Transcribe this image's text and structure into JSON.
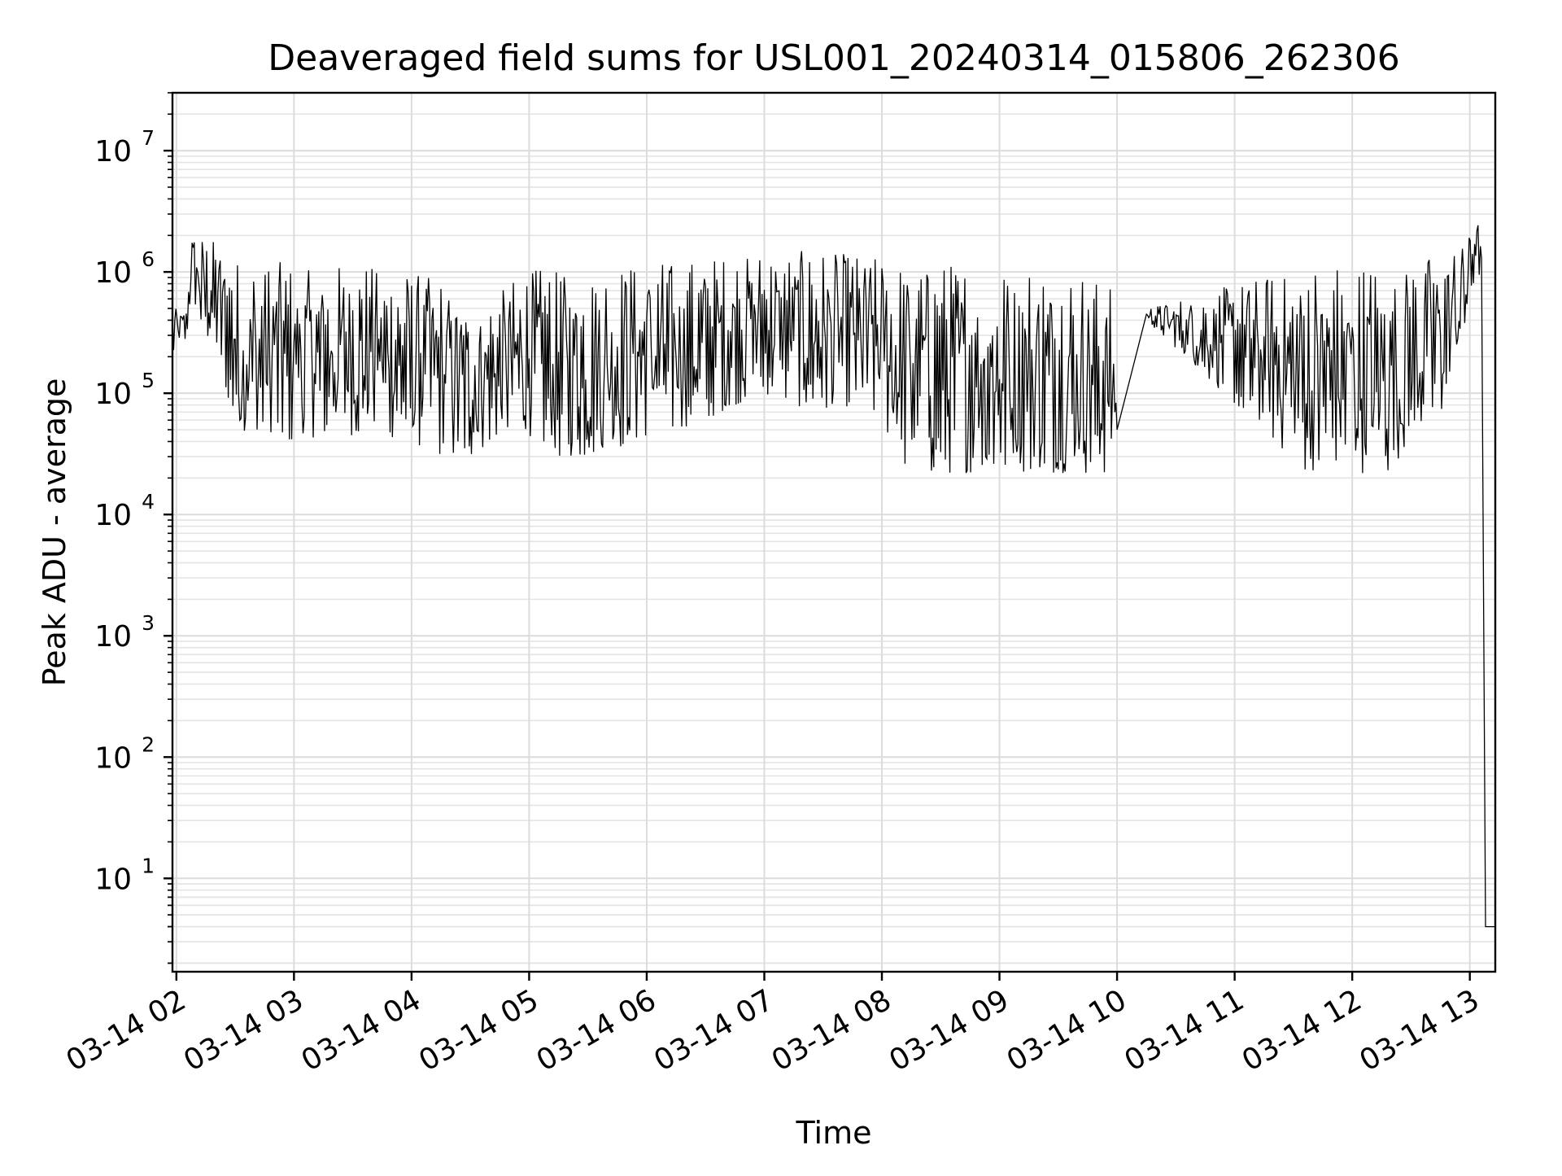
{
  "chart_data": {
    "type": "line",
    "title": "Deaveraged field sums for USL001_20240314_015806_262306",
    "xlabel": "Time",
    "ylabel": "Peak ADU - average",
    "yscale": "log",
    "ylim": [
      1.7,
      30000000
    ],
    "xlim": [
      "2024-03-14 01:58",
      "2024-03-14 13:13"
    ],
    "grid": "major and minor",
    "line_color": "#000000",
    "x_tick_labels": [
      "03-14 02",
      "03-14 03",
      "03-14 04",
      "03-14 05",
      "03-14 06",
      "03-14 07",
      "03-14 08",
      "03-14 09",
      "03-14 10",
      "03-14 11",
      "03-14 12",
      "03-14 13"
    ],
    "x_ticks": [
      "2024-03-14 02:00",
      "2024-03-14 03:00",
      "2024-03-14 04:00",
      "2024-03-14 05:00",
      "2024-03-14 06:00",
      "2024-03-14 07:00",
      "2024-03-14 08:00",
      "2024-03-14 09:00",
      "2024-03-14 10:00",
      "2024-03-14 11:00",
      "2024-03-14 12:00",
      "2024-03-14 13:00"
    ],
    "y_ticks": [
      {
        "value": 10,
        "base": "10",
        "exp": "1"
      },
      {
        "value": 100,
        "base": "10",
        "exp": "2"
      },
      {
        "value": 1000,
        "base": "10",
        "exp": "3"
      },
      {
        "value": 10000,
        "base": "10",
        "exp": "4"
      },
      {
        "value": 100000,
        "base": "10",
        "exp": "5"
      },
      {
        "value": 1000000,
        "base": "10",
        "exp": "6"
      },
      {
        "value": 10000000,
        "base": "10",
        "exp": "7"
      }
    ],
    "series": [
      {
        "x": [
          "2024-03-14 01:58",
          "2024-03-14 02:05",
          "2024-03-14 02:08",
          "2024-03-14 02:12",
          "2024-03-14 02:20",
          "2024-03-14 02:30",
          "2024-03-14 02:40",
          "2024-03-14 02:50",
          "2024-03-14 03:00",
          "2024-03-14 03:15",
          "2024-03-14 03:30",
          "2024-03-14 03:45",
          "2024-03-14 04:00",
          "2024-03-14 04:15",
          "2024-03-14 04:30",
          "2024-03-14 04:45",
          "2024-03-14 05:00",
          "2024-03-14 05:15",
          "2024-03-14 05:30",
          "2024-03-14 05:45",
          "2024-03-14 06:00",
          "2024-03-14 06:15",
          "2024-03-14 06:30",
          "2024-03-14 06:45",
          "2024-03-14 07:00",
          "2024-03-14 07:15",
          "2024-03-14 07:30",
          "2024-03-14 07:45",
          "2024-03-14 08:00",
          "2024-03-14 08:10",
          "2024-03-14 08:20",
          "2024-03-14 08:40",
          "2024-03-14 09:00",
          "2024-03-14 09:20",
          "2024-03-14 09:40",
          "2024-03-14 10:00",
          "2024-03-14 10:15",
          "2024-03-14 11:40",
          "2024-03-14 11:50",
          "2024-03-14 12:00",
          "2024-03-14 12:20",
          "2024-03-14 12:30",
          "2024-03-14 12:45",
          "2024-03-14 12:58",
          "2024-03-14 13:03",
          "2024-03-14 13:06",
          "2024-03-14 13:08",
          "2024-03-14 13:13"
        ],
        "y": [
          300000,
          400000,
          1800000,
          700000,
          1500000,
          300000,
          200000,
          100000,
          150000,
          100000,
          300000,
          150000,
          200000,
          120000,
          70000,
          60000,
          80000,
          70000,
          60000,
          80000,
          150000,
          200000,
          300000,
          500000,
          900000,
          1200000,
          1000000,
          800000,
          400000,
          50000,
          35000,
          60000,
          120000,
          80000,
          60000,
          50000,
          450000,
          35000,
          40000,
          35000,
          35000,
          60000,
          300000,
          500000,
          1600000,
          1300000,
          4,
          4
        ],
        "y_range_low": [
          200000,
          260000,
          800000,
          300000,
          250000,
          50000,
          40000,
          40000,
          40000,
          45000,
          45000,
          45000,
          40000,
          30000,
          30000,
          45000,
          45000,
          30000,
          30000,
          35000,
          45000,
          50000,
          60000,
          80000,
          100000,
          80000,
          70000,
          80000,
          60000,
          25000,
          22000,
          22000,
          22000,
          22000,
          22000,
          22000,
          400000,
          20000,
          22000,
          22000,
          22000,
          40000,
          60000,
          300000,
          1000000,
          900000,
          4,
          4
        ],
        "y_range_high": [
          500000,
          500000,
          2000000,
          2000000,
          1800000,
          1300000,
          1200000,
          1300000,
          1100000,
          1000000,
          1300000,
          1100000,
          1000000,
          900000,
          500000,
          700000,
          1100000,
          1000000,
          1100000,
          1200000,
          1300000,
          1200000,
          1300000,
          1400000,
          1500000,
          1500000,
          1500000,
          1400000,
          1300000,
          1200000,
          1200000,
          1200000,
          1200000,
          1200000,
          1100000,
          700000,
          500000,
          1200000,
          1200000,
          1200000,
          1200000,
          1200000,
          1600000,
          1800000,
          3000000,
          2000000,
          4,
          4
        ]
      }
    ]
  }
}
